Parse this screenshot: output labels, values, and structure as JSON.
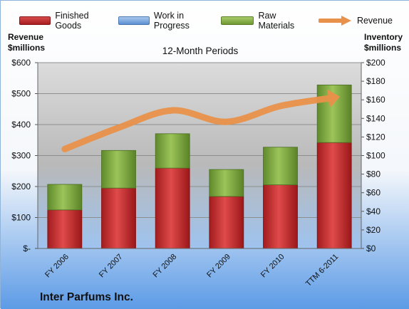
{
  "colors": {
    "finished_goods": "#c0282a",
    "work_in_progress": "#5b8fd0",
    "raw_materials": "#7ea83c",
    "revenue": "#e8914a"
  },
  "legend": [
    {
      "label": "Finished Goods",
      "key": "finished_goods"
    },
    {
      "label": "Work in Progress",
      "key": "work_in_progress"
    },
    {
      "label": "Raw Materials",
      "key": "raw_materials"
    },
    {
      "label": "Revenue",
      "key": "revenue",
      "marker": "arrow"
    }
  ],
  "left_axis_title": [
    "Revenue",
    "$millions"
  ],
  "right_axis_title": [
    "Inventory",
    "$millions"
  ],
  "company": "Inter Parfums Inc.",
  "chart_data": {
    "type": "bar",
    "title": "12-Month Periods",
    "categories": [
      "FY 2006",
      "FY 2007",
      "FY 2008",
      "FY 2009",
      "FY 2010",
      "TTM 6-2011"
    ],
    "inventory_axis": {
      "label": "Inventory $millions",
      "ylim": [
        0,
        200
      ],
      "ticks": [
        0,
        20,
        40,
        60,
        80,
        100,
        120,
        140,
        160,
        180,
        200
      ],
      "tick_labels": [
        "$0",
        "$20",
        "$40",
        "$60",
        "$80",
        "$100",
        "$120",
        "$140",
        "$160",
        "$180",
        "$200"
      ]
    },
    "revenue_axis": {
      "label": "Revenue $millions",
      "ylim": [
        0,
        600
      ],
      "ticks": [
        0,
        100,
        200,
        300,
        400,
        500,
        600
      ],
      "tick_labels": [
        "$-",
        "$100",
        "$200",
        "$300",
        "$400",
        "$500",
        "$600"
      ]
    },
    "series": [
      {
        "name": "Finished Goods",
        "type": "bar",
        "axis": "inventory",
        "values": [
          41.5,
          65,
          86.5,
          56,
          68.5,
          114
        ]
      },
      {
        "name": "Work in Progress",
        "type": "bar",
        "axis": "inventory",
        "values": [
          0,
          0,
          0,
          0,
          0,
          0
        ]
      },
      {
        "name": "Raw Materials",
        "type": "bar",
        "axis": "inventory",
        "values": [
          27.5,
          40.5,
          37,
          29,
          40.5,
          62
        ]
      },
      {
        "name": "Revenue",
        "type": "line",
        "axis": "revenue",
        "values": [
          321,
          390,
          446,
          409,
          460,
          487
        ]
      }
    ],
    "grid": true,
    "legend_position": "top"
  }
}
